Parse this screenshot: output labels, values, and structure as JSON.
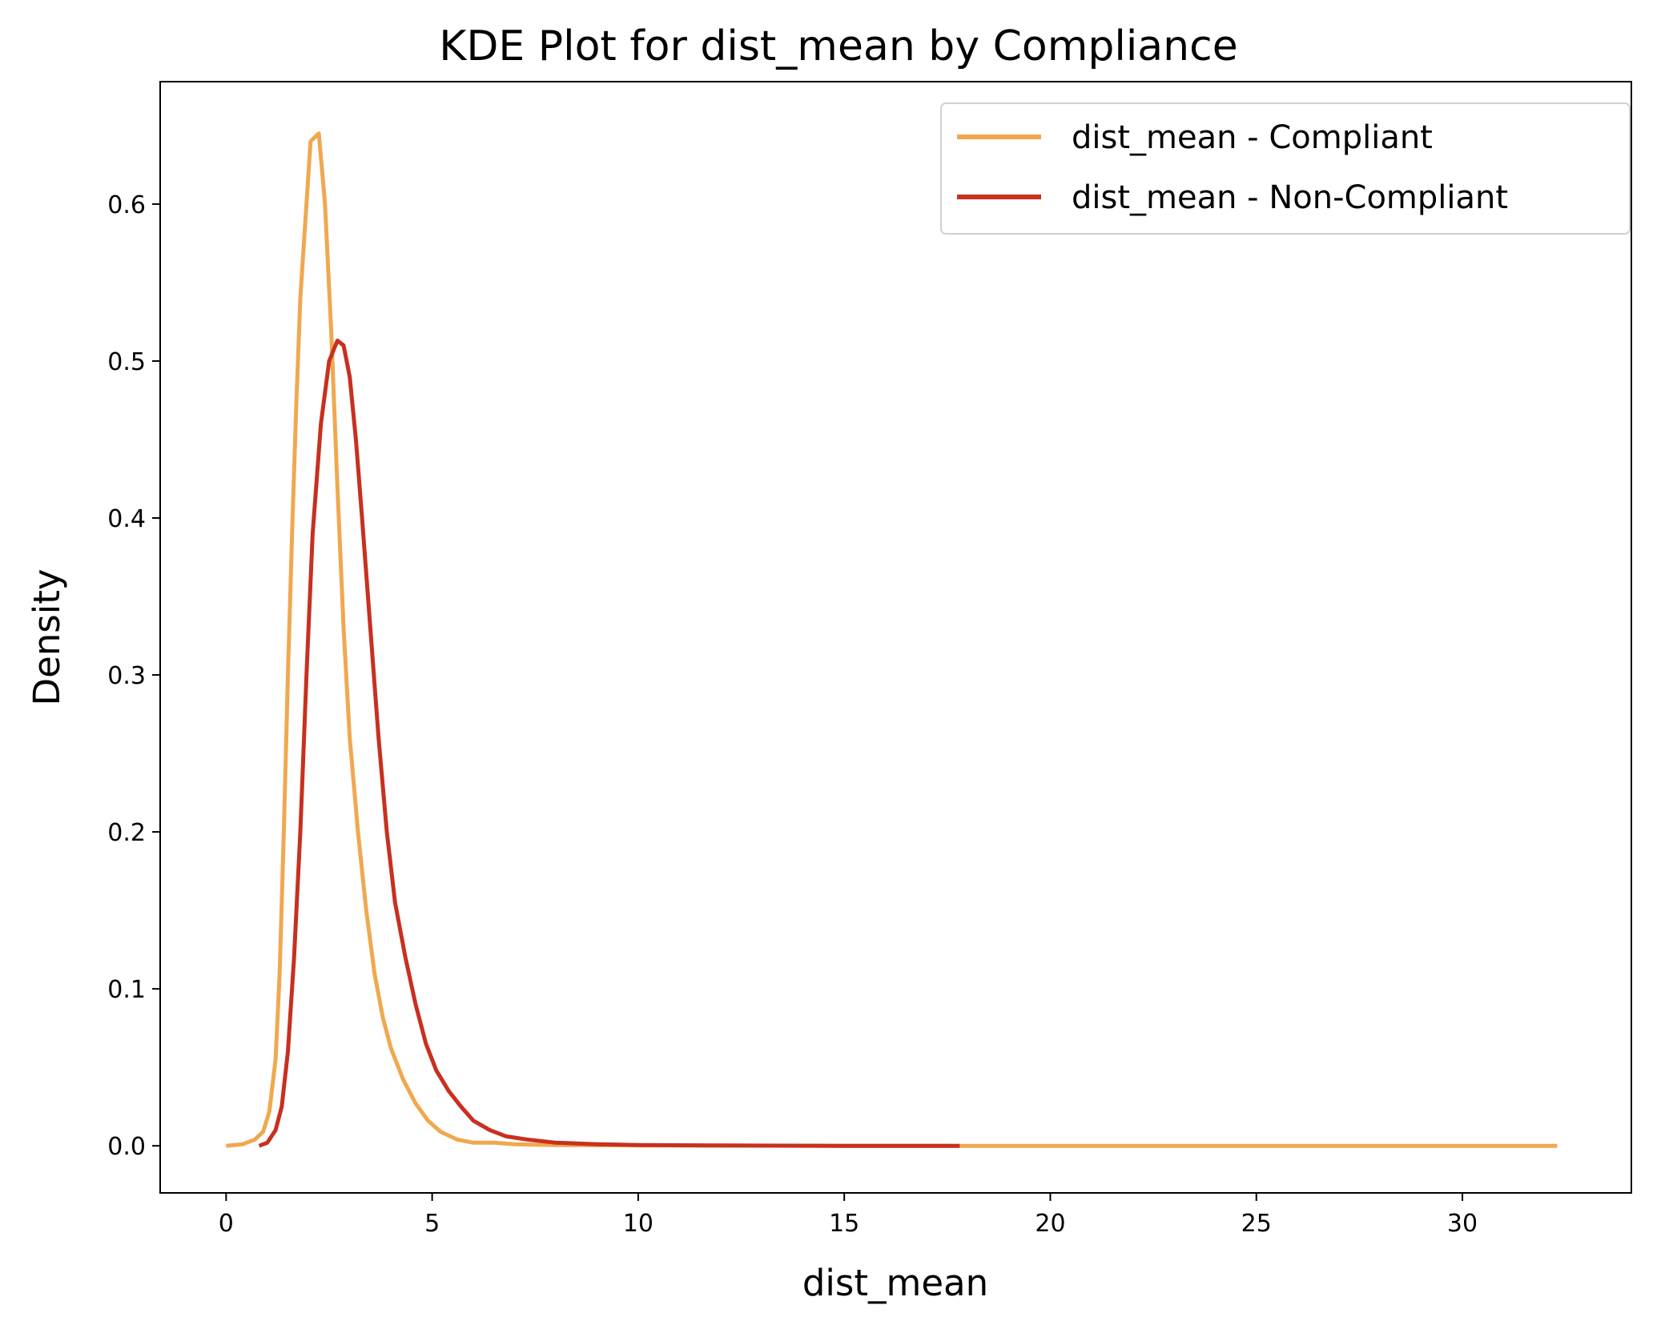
{
  "chart_data": {
    "type": "line",
    "title": "KDE Plot for dist_mean by Compliance",
    "xlabel": "dist_mean",
    "ylabel": "Density",
    "xlim": [
      -1.6,
      34.1
    ],
    "ylim": [
      -0.03,
      0.678
    ],
    "xticks": [
      0,
      5,
      10,
      15,
      20,
      25,
      30
    ],
    "yticks": [
      0.0,
      0.1,
      0.2,
      0.3,
      0.4,
      0.5,
      0.6
    ],
    "xtick_labels": [
      "0",
      "5",
      "10",
      "15",
      "20",
      "25",
      "30"
    ],
    "ytick_labels": [
      "0.0",
      "0.1",
      "0.2",
      "0.3",
      "0.4",
      "0.5",
      "0.6"
    ],
    "grid": false,
    "legend_position": "top-right",
    "series": [
      {
        "name": "dist_mean - Compliant",
        "color": "#f0a84f",
        "points": [
          [
            0.0,
            0.0
          ],
          [
            0.4,
            0.001
          ],
          [
            0.7,
            0.004
          ],
          [
            0.9,
            0.009
          ],
          [
            1.05,
            0.022
          ],
          [
            1.2,
            0.055
          ],
          [
            1.3,
            0.11
          ],
          [
            1.4,
            0.2
          ],
          [
            1.5,
            0.3
          ],
          [
            1.6,
            0.39
          ],
          [
            1.7,
            0.47
          ],
          [
            1.8,
            0.54
          ],
          [
            1.9,
            0.58
          ],
          [
            2.05,
            0.64
          ],
          [
            2.25,
            0.645
          ],
          [
            2.4,
            0.6
          ],
          [
            2.55,
            0.52
          ],
          [
            2.7,
            0.42
          ],
          [
            2.85,
            0.33
          ],
          [
            3.0,
            0.26
          ],
          [
            3.2,
            0.2
          ],
          [
            3.4,
            0.15
          ],
          [
            3.6,
            0.11
          ],
          [
            3.8,
            0.082
          ],
          [
            4.0,
            0.062
          ],
          [
            4.3,
            0.042
          ],
          [
            4.6,
            0.027
          ],
          [
            4.9,
            0.016
          ],
          [
            5.2,
            0.009
          ],
          [
            5.6,
            0.004
          ],
          [
            6.0,
            0.002
          ],
          [
            6.5,
            0.002
          ],
          [
            7.0,
            0.001
          ],
          [
            8.0,
            0.0005
          ],
          [
            10.0,
            0.0003
          ],
          [
            15.0,
            0.0
          ],
          [
            20.0,
            0.0
          ],
          [
            25.0,
            0.0
          ],
          [
            30.0,
            0.0
          ],
          [
            32.3,
            0.0
          ]
        ]
      },
      {
        "name": "dist_mean - Non-Compliant",
        "color": "#c8301f",
        "points": [
          [
            0.8,
            0.0
          ],
          [
            1.0,
            0.002
          ],
          [
            1.2,
            0.01
          ],
          [
            1.35,
            0.025
          ],
          [
            1.5,
            0.06
          ],
          [
            1.65,
            0.12
          ],
          [
            1.8,
            0.2
          ],
          [
            1.95,
            0.3
          ],
          [
            2.1,
            0.39
          ],
          [
            2.3,
            0.46
          ],
          [
            2.5,
            0.5
          ],
          [
            2.7,
            0.513
          ],
          [
            2.85,
            0.51
          ],
          [
            3.0,
            0.49
          ],
          [
            3.15,
            0.45
          ],
          [
            3.3,
            0.4
          ],
          [
            3.5,
            0.33
          ],
          [
            3.7,
            0.26
          ],
          [
            3.9,
            0.2
          ],
          [
            4.1,
            0.155
          ],
          [
            4.35,
            0.12
          ],
          [
            4.6,
            0.09
          ],
          [
            4.85,
            0.065
          ],
          [
            5.1,
            0.048
          ],
          [
            5.4,
            0.035
          ],
          [
            5.7,
            0.025
          ],
          [
            6.0,
            0.016
          ],
          [
            6.4,
            0.01
          ],
          [
            6.8,
            0.006
          ],
          [
            7.3,
            0.004
          ],
          [
            8.0,
            0.002
          ],
          [
            9.0,
            0.001
          ],
          [
            10.0,
            0.0005
          ],
          [
            12.0,
            0.0002
          ],
          [
            15.0,
            0.0
          ],
          [
            17.8,
            0.0
          ]
        ]
      }
    ]
  }
}
